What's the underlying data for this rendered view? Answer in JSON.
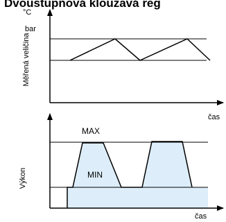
{
  "title": "Dvoustupňová klouzavá reg",
  "top_chart": {
    "y_unit_1": "°C",
    "y_unit_2": "bar",
    "y_axis_label": "Měřená veličina",
    "x_axis_label": "čas"
  },
  "bottom_chart": {
    "y_axis_label": "Výkon",
    "x_axis_label": "čas",
    "max_label": "MAX",
    "min_label": "MIN"
  },
  "colors": {
    "fill": "#ddeefa",
    "line": "#000000"
  }
}
